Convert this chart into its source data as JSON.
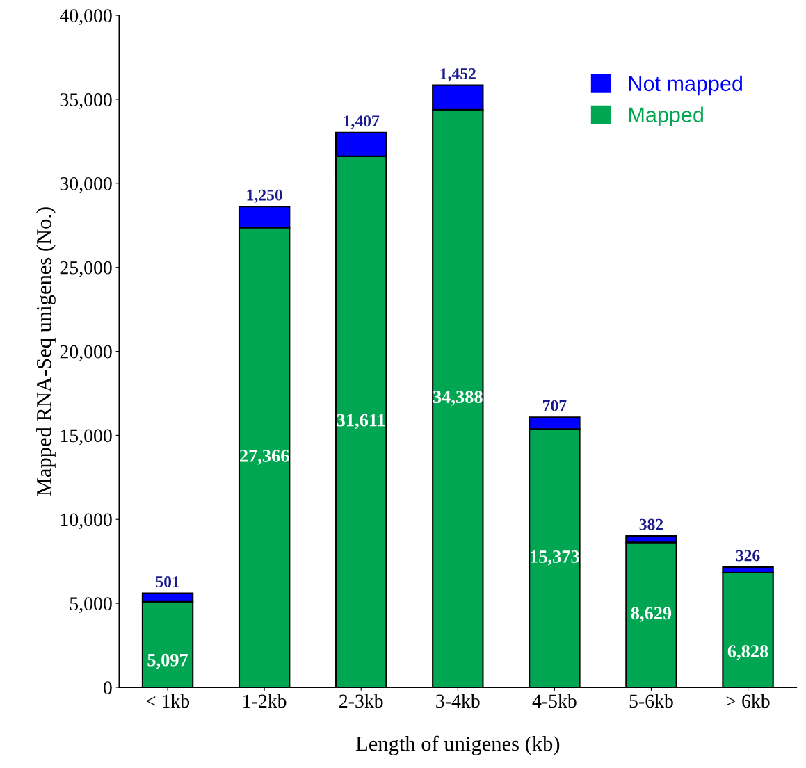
{
  "chart_data": {
    "type": "bar",
    "stacked": true,
    "xlabel": "Length of unigenes (kb)",
    "ylabel": "Mapped RNA-Seq unigenes (No.)",
    "categories": [
      "< 1kb",
      "1-2kb",
      "2-3kb",
      "3-4kb",
      "4-5kb",
      "5-6kb",
      "> 6kb"
    ],
    "series": [
      {
        "name": "Mapped",
        "color": "#00a651",
        "values": [
          5097,
          27366,
          31611,
          34388,
          15373,
          8629,
          6828
        ],
        "value_labels": [
          "5,097",
          "27,366",
          "31,611",
          "34,388",
          "15,373",
          "8,629",
          "6,828"
        ]
      },
      {
        "name": "Not mapped",
        "color": "#0000ff",
        "values": [
          501,
          1250,
          1407,
          1452,
          707,
          382,
          326
        ],
        "value_labels": [
          "501",
          "1,250",
          "1,407",
          "1,452",
          "707",
          "382",
          "326"
        ]
      }
    ],
    "ylim": [
      0,
      40000
    ],
    "yticks": [
      0,
      {
        "value": 5000,
        "label": "5,000"
      },
      {
        "value": 10000,
        "label": "10,000"
      },
      {
        "value": 15000,
        "label": "15,000"
      },
      {
        "value": 20000,
        "label": "20,000"
      },
      {
        "value": 25000,
        "label": "25,000"
      },
      {
        "value": 30000,
        "label": "30,000"
      },
      {
        "value": 35000,
        "label": "35,000"
      },
      {
        "value": 40000,
        "label": "40,000"
      }
    ],
    "grid": false,
    "legend": "top right"
  }
}
